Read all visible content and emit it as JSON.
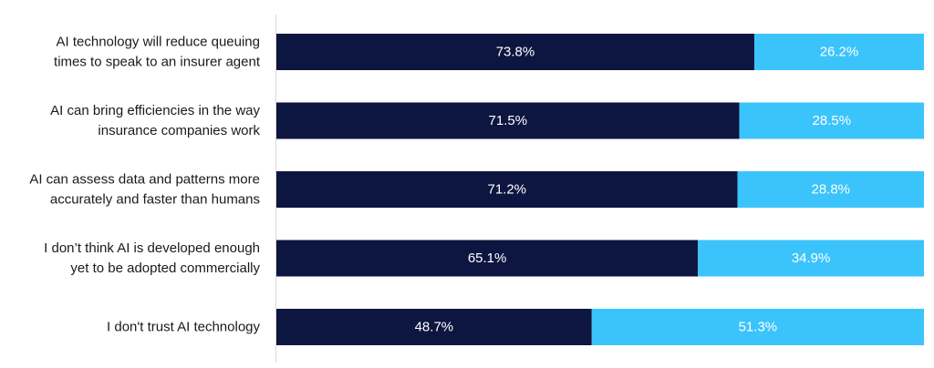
{
  "chart_data": {
    "type": "bar",
    "orientation": "horizontal",
    "stacked": true,
    "percent_stacked": true,
    "title": "",
    "xlabel": "",
    "ylabel": "",
    "xlim": [
      0,
      100
    ],
    "grid": false,
    "legend": "none",
    "categories": [
      [
        "AI technology will reduce queuing",
        "times to speak to an insurer agent"
      ],
      [
        "AI can bring efficiencies in the way",
        "insurance companies work"
      ],
      [
        "AI can assess data and patterns more",
        "accurately and faster than humans"
      ],
      [
        "I don’t think AI is developed enough",
        "yet to be adopted commercially"
      ],
      [
        "I don't trust AI technology"
      ]
    ],
    "series": [
      {
        "color": "#0d1640",
        "values": [
          73.8,
          71.5,
          71.2,
          65.1,
          48.7
        ],
        "labels": [
          "73.8%",
          "71.5%",
          "71.2%",
          "65.1%",
          "48.7%"
        ]
      },
      {
        "color": "#3bc4fb",
        "values": [
          26.2,
          28.5,
          28.8,
          34.9,
          51.3
        ],
        "labels": [
          "26.2%",
          "28.5%",
          "28.8%",
          "34.9%",
          "51.3%"
        ]
      }
    ]
  }
}
